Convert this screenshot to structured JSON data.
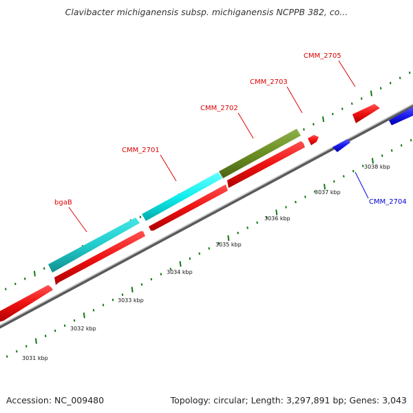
{
  "title": "Clavibacter michiganensis subsp. michiganensis NCPPB 382, co...",
  "footer": {
    "accession": "Accession: NC_009480",
    "summary": "Topology: circular; Length: 3,297,891 bp; Genes: 3,043"
  },
  "colors": {
    "forward_gene": "#ee1111",
    "reverse_gene": "#1a1aee",
    "rna": "#22cccc",
    "other": "#6b8e23",
    "backbone": "#8a8a8a",
    "ticks": "#117711",
    "forward_label": "#dd0000",
    "reverse_label": "#0000dd"
  },
  "kbp_ticks": [
    "3031 kbp",
    "3032 kbp",
    "3033 kbp",
    "3034 kbp",
    "3035 kbp",
    "3036 kbp",
    "3037 kbp",
    "3038 kbp"
  ],
  "gene_labels": {
    "bgaB": "bgaB",
    "CMM_2701": "CMM_2701",
    "CMM_2702": "CMM_2702",
    "CMM_2703": "CMM_2703",
    "CMM_2704": "CMM_2704",
    "CMM_2705": "CMM_2705"
  }
}
